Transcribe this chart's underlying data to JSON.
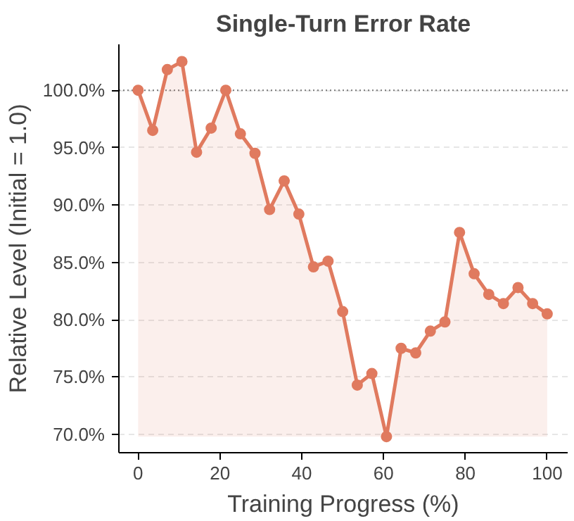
{
  "chart_data": {
    "type": "area",
    "title": "Single-Turn Error Rate",
    "xlabel": "Training Progress (%)",
    "ylabel": "Relative Level (Initial = 1.0)",
    "x": [
      0,
      3.57,
      7.14,
      10.71,
      14.29,
      17.86,
      21.43,
      25,
      28.57,
      32.14,
      35.71,
      39.29,
      42.86,
      46.43,
      50,
      53.57,
      57.14,
      60.71,
      64.29,
      67.86,
      71.43,
      75,
      78.57,
      82.14,
      85.71,
      89.29,
      92.86,
      96.43,
      100
    ],
    "series": [
      {
        "color": "#e07a5f",
        "values": [
          100,
          96.5,
          101.8,
          102.5,
          94.6,
          96.7,
          100,
          96.2,
          94.5,
          89.6,
          92.1,
          89.2,
          84.6,
          85.1,
          80.7,
          74.3,
          75.3,
          69.8,
          77.5,
          77.1,
          79,
          79.8,
          87.6,
          84,
          82.2,
          81.4,
          82.8,
          81.4,
          80.5
        ]
      }
    ],
    "xlim": [
      -4.7,
      105
    ],
    "ylim": [
      68.4,
      104
    ],
    "xticks": [
      0,
      20,
      40,
      60,
      80,
      100
    ],
    "yticks": [
      {
        "value": 70,
        "label": "70.0%"
      },
      {
        "value": 75,
        "label": "75.0%"
      },
      {
        "value": 80,
        "label": "80.0%"
      },
      {
        "value": 85,
        "label": "85.0%"
      },
      {
        "value": 90,
        "label": "90.0%"
      },
      {
        "value": 95,
        "label": "95.0%"
      },
      {
        "value": 100,
        "label": "100.0%"
      }
    ],
    "grid": "y",
    "marker": "circle",
    "line_style": "solid",
    "ref_lines": [
      {
        "axis": "y",
        "value": 100,
        "color": "#777777",
        "line_style": "dotted"
      }
    ]
  }
}
